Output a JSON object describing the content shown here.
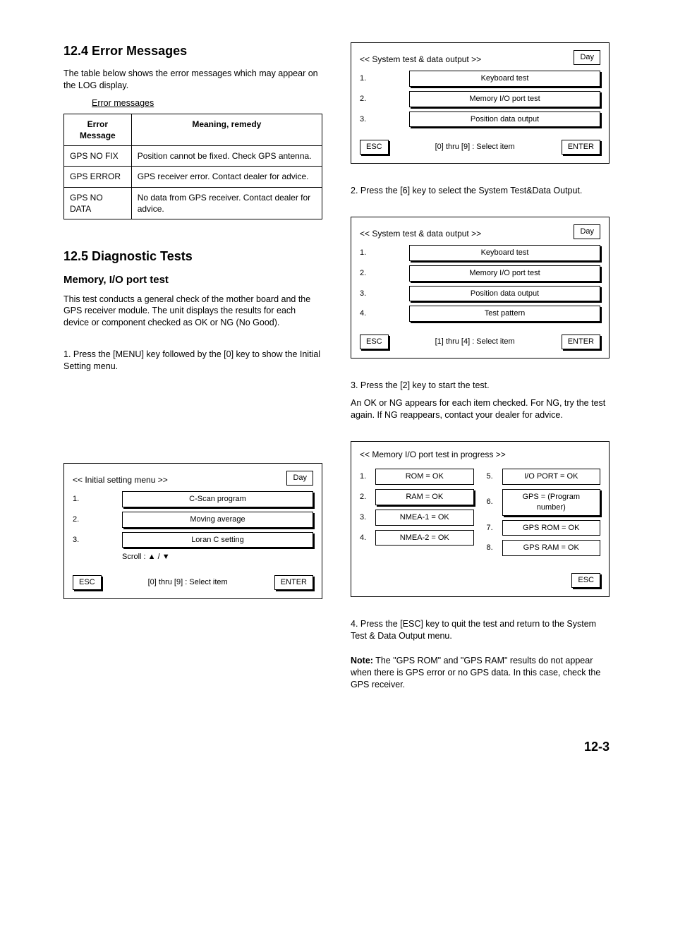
{
  "section_12_4": {
    "heading": "12.4  Error Messages",
    "para1": "The table below shows the error messages which may appear on the LOG display.",
    "table_title": "Error messages",
    "columns": [
      "Error Message",
      "Meaning, remedy"
    ],
    "rows": [
      [
        "GPS NO FIX",
        "Position cannot be fixed. Check GPS antenna."
      ],
      [
        "GPS ERROR",
        "GPS receiver error. Contact dealer for advice."
      ],
      [
        "GPS NO DATA",
        "No data from GPS receiver. Contact dealer for advice."
      ]
    ]
  },
  "section_12_5": {
    "heading": "12.5  Diagnostic Tests",
    "sub": "Memory, I/O port test",
    "para1": "This test conducts a general check of the mother board and the GPS receiver module. The unit displays the results for each device or component checked as OK or NG (No Good).",
    "step1": "1. Press the [MENU] key followed by the [0] key to show the Initial Setting menu.",
    "step2": "2. Press the [6] key to select the System Test&Data Output.",
    "step3_pre": "3. Press the [2] key to start the test.",
    "step3_post": "An OK or NG appears for each item checked. For NG, try the test again. If NG reappears, contact your dealer for advice.",
    "step4": "4. Press the [ESC] key to quit the test and return to the System Test & Data Output menu.",
    "note_label": "Note:",
    "note_text": " The \"GPS ROM\" and \"GPS RAM\" results do not appear when there is GPS error or no GPS data. In this case, check the GPS receiver."
  },
  "menu_initial": {
    "title": "<< Initial setting menu >>",
    "day_value": "Day",
    "rows": [
      {
        "n": "1.",
        "v": "C-Scan program"
      },
      {
        "n": "2.",
        "v": "Moving average"
      },
      {
        "n": "3.",
        "v": "Loran C setting"
      }
    ],
    "scroll": "Scroll : ▲ / ▼",
    "esc": "ESC",
    "center": "[0] thru [9] : Select item",
    "enter": "ENTER"
  },
  "menu_system": {
    "title": "<< System test & data output >>",
    "day_value": "Day",
    "rows": [
      {
        "n": "1.",
        "v": "Keyboard test"
      },
      {
        "n": "2.",
        "v": "Memory I/O port test"
      },
      {
        "n": "3.",
        "v": "Position data output"
      },
      {
        "n": "4.",
        "v": "Test pattern"
      }
    ],
    "esc": "ESC",
    "center": "[0] thru [9] : Select item",
    "enter": "ENTER"
  },
  "menu_system2": {
    "title": "<< System test & data output >>",
    "day_value": "Day",
    "rows": [
      {
        "n": "1.",
        "v": "Keyboard test"
      },
      {
        "n": "2.",
        "v": "Memory I/O port test"
      },
      {
        "n": "3.",
        "v": "Position data output"
      },
      {
        "n": "4.",
        "v": "Test pattern"
      }
    ],
    "esc": "ESC",
    "center": "[1] thru [4] : Select item",
    "enter": "ENTER"
  },
  "run_box": {
    "title": "<< Memory I/O port test in progress >>",
    "left": [
      {
        "n": "1.",
        "v": "ROM = OK"
      },
      {
        "n": "2.",
        "v": "RAM = OK"
      },
      {
        "n": "3.",
        "v": "NMEA-1 = OK"
      },
      {
        "n": "4.",
        "v": "NMEA-2 = OK"
      }
    ],
    "right": [
      {
        "n": "5.",
        "v": "I/O PORT = OK"
      },
      {
        "n": "6.",
        "v": "GPS       = (Program\n                     number)"
      },
      {
        "n": "7.",
        "v": "GPS ROM = OK"
      },
      {
        "n": "8.",
        "v": "GPS RAM = OK"
      }
    ],
    "esc": "ESC"
  },
  "page_number": "12-3",
  "colors": {
    "text": "#000000",
    "bg": "#ffffff",
    "border": "#000000"
  }
}
